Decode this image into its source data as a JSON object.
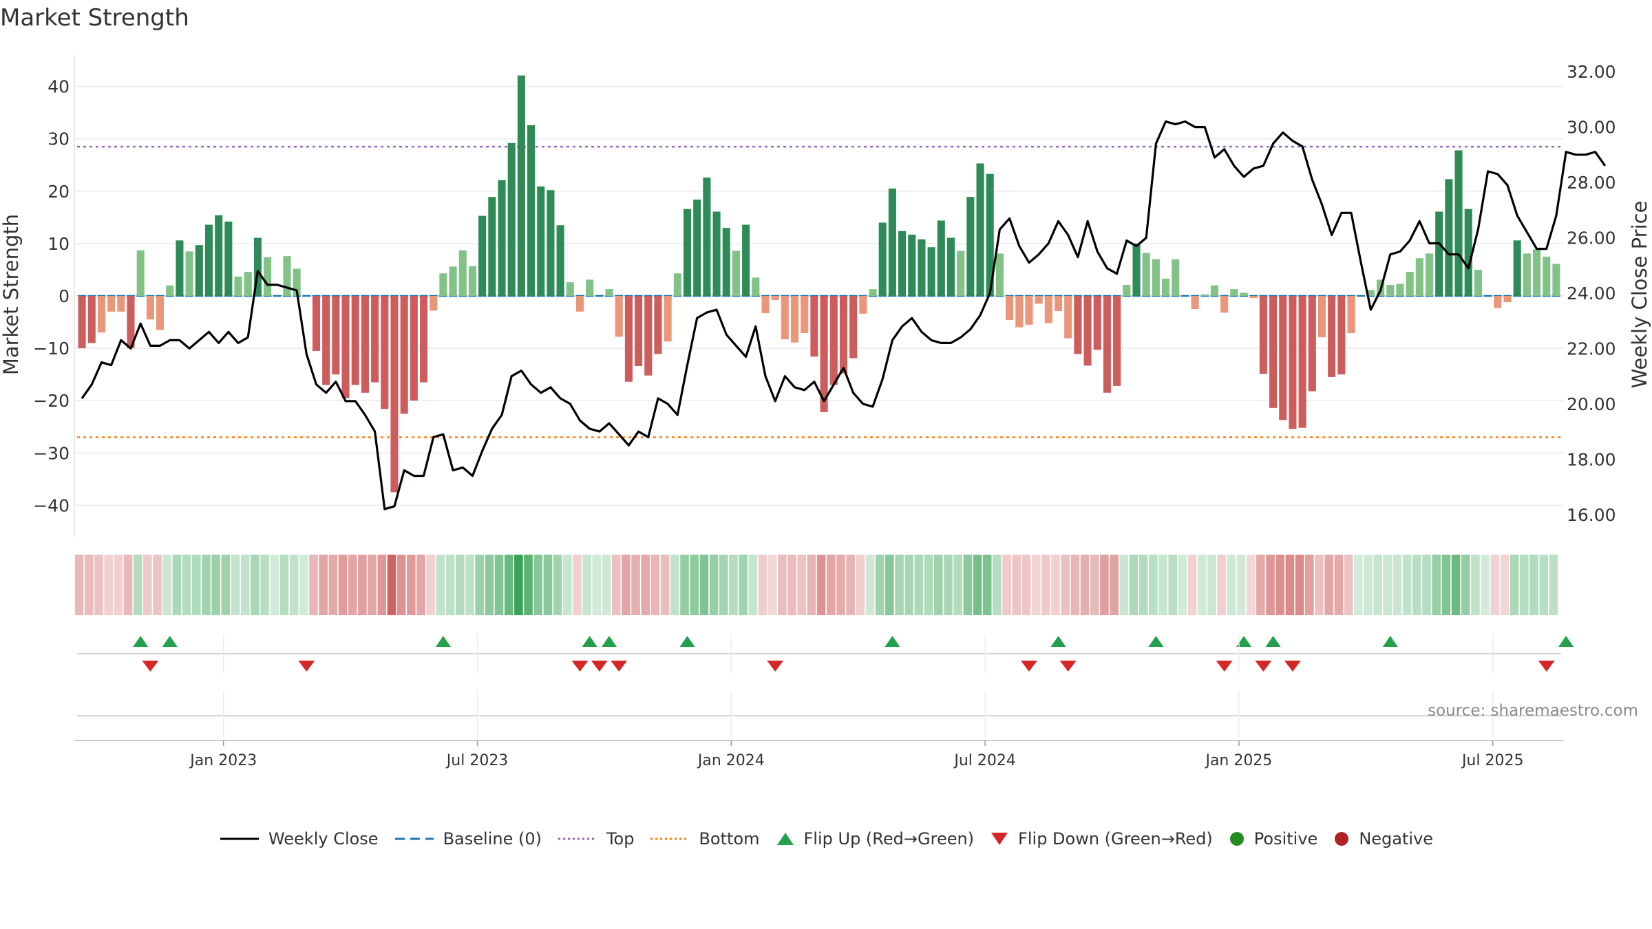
{
  "chart_data": {
    "type": "bar",
    "title": "Market Strength",
    "source": "source: sharemaestro.com",
    "ylabel_left": "Market Strength",
    "ylabel_right": "Weekly Close Price",
    "ylim_left": [
      -46,
      46
    ],
    "ylim_right": [
      15.2,
      32.6
    ],
    "left_ticks": [
      40,
      30,
      20,
      10,
      0,
      -10,
      -20,
      -30,
      -40
    ],
    "left_tick_labels": [
      "40",
      "30",
      "20",
      "10",
      "0",
      "−10",
      "−20",
      "−30",
      "−40"
    ],
    "right_ticks": [
      "32.00",
      "30.00",
      "28.00",
      "26.00",
      "24.00",
      "22.00",
      "20.00",
      "18.00",
      "16.00"
    ],
    "x_ticks": [
      "Jan 2023",
      "Jul 2023",
      "Jan 2024",
      "Jul 2024",
      "Jan 2025",
      "Jul 2025"
    ],
    "x_tick_weeks": [
      14.5,
      40.5,
      66.5,
      92.5,
      118.5,
      144.5
    ],
    "top_level": 28.5,
    "bottom_level": -27,
    "baseline": 0,
    "strength": [
      -10,
      -9,
      -7,
      -3,
      -3,
      -10,
      8.7,
      -4.5,
      -6.5,
      2,
      10.6,
      8.5,
      9.7,
      13.6,
      15.4,
      14.2,
      3.7,
      4.6,
      11.1,
      7.4,
      0,
      7.6,
      5.2,
      0,
      -10.5,
      -17,
      -15,
      -19.5,
      -17,
      -18.5,
      -16.5,
      -21.6,
      -37.5,
      -22.5,
      -20,
      -16.5,
      -2.8,
      4.3,
      5.6,
      8.7,
      5.7,
      15.3,
      18.9,
      22.1,
      29.2,
      42.1,
      32.6,
      20.9,
      20.2,
      13.5,
      2.6,
      -3,
      3.1,
      0,
      1.3,
      -7.8,
      -16.4,
      -13.4,
      -15.2,
      -11.1,
      -8.7,
      4.3,
      16.6,
      18.4,
      22.6,
      16.1,
      13,
      8.6,
      13.6,
      3.5,
      -3.3,
      -0.8,
      -8.3,
      -8.9,
      -7.1,
      -11.6,
      -22.2,
      -17,
      -14.8,
      -11.9,
      -3.4,
      1.3,
      14,
      20.5,
      12.4,
      11.7,
      10.8,
      9.3,
      14.4,
      11.1,
      8.6,
      18.9,
      25.3,
      23.3,
      8.1,
      -4.6,
      -6,
      -5.5,
      -1.5,
      -5.2,
      -2.9,
      -8.1,
      -11.1,
      -13.3,
      -10.3,
      -18.5,
      -17.2,
      2.1,
      10,
      8.2,
      7,
      3.3,
      7,
      0,
      -2.5,
      0.3,
      2,
      -3.2,
      1.3,
      0.6,
      -0.4,
      -14.9,
      -21.4,
      -23.7,
      -25.4,
      -25.2,
      -18.2,
      -7.9,
      -15.5,
      -15,
      -7.1,
      0,
      1.1,
      3.1,
      2.1,
      2.3,
      4.6,
      7.2,
      8.1,
      16.1,
      22.3,
      27.8,
      16.6,
      5,
      0,
      -2.3,
      -1.2,
      10.6,
      8.1,
      8.9,
      7.5,
      6.1
    ],
    "close": [
      20.2,
      20.7,
      21.5,
      21.4,
      22.3,
      22.0,
      22.9,
      22.1,
      22.1,
      22.3,
      22.3,
      22.0,
      22.3,
      22.6,
      22.2,
      22.6,
      22.2,
      22.4,
      24.8,
      24.3,
      24.3,
      24.2,
      24.1,
      21.8,
      20.7,
      20.4,
      20.8,
      20.1,
      20.1,
      19.6,
      19.0,
      16.2,
      16.3,
      17.6,
      17.4,
      17.4,
      18.8,
      18.9,
      17.6,
      17.7,
      17.4,
      18.3,
      19.1,
      19.6,
      21.0,
      21.2,
      20.7,
      20.4,
      20.6,
      20.2,
      20.0,
      19.4,
      19.1,
      19.0,
      19.3,
      18.9,
      18.5,
      19.0,
      18.8,
      20.2,
      20.0,
      19.6,
      21.4,
      23.1,
      23.3,
      23.4,
      22.5,
      22.1,
      21.7,
      22.8,
      21.0,
      20.1,
      21.0,
      20.6,
      20.5,
      20.8,
      20.1,
      20.7,
      21.3,
      20.4,
      20.0,
      19.9,
      20.9,
      22.3,
      22.8,
      23.1,
      22.6,
      22.3,
      22.2,
      22.2,
      22.4,
      22.7,
      23.2,
      24.0,
      26.3,
      26.7,
      25.7,
      25.1,
      25.4,
      25.8,
      26.6,
      26.1,
      25.3,
      26.6,
      25.5,
      24.9,
      24.7,
      25.9,
      25.7,
      26.0,
      29.4,
      30.2,
      30.1,
      30.2,
      30.0,
      30.0,
      28.9,
      29.2,
      28.6,
      28.2,
      28.5,
      28.6,
      29.4,
      29.8,
      29.5,
      29.3,
      28.1,
      27.2,
      26.1,
      26.9,
      26.9,
      25.1,
      23.4,
      24.1,
      25.4,
      25.5,
      25.9,
      26.6,
      25.8,
      25.8,
      25.4,
      25.4,
      24.9,
      26.3,
      28.4,
      28.3,
      27.9,
      26.8,
      26.2,
      25.6,
      25.6,
      26.8,
      29.1,
      29.0,
      29.0,
      29.1,
      28.6
    ],
    "flips_up": [
      6,
      9,
      37,
      52,
      54,
      62,
      83,
      100,
      110,
      119,
      122,
      134,
      152
    ],
    "flips_down": [
      7,
      23,
      51,
      53,
      55,
      71,
      97,
      101,
      117,
      121,
      124,
      150
    ],
    "legend": [
      "Weekly Close",
      "Baseline (0)",
      "Top",
      "Bottom",
      "Flip Up (Red→Green)",
      "Flip Down (Green→Red)",
      "Positive",
      "Negative"
    ],
    "colors": {
      "green_strong": "#2e8b57",
      "green_weak": "#82c287",
      "red_strong": "#cd5c5c",
      "red_weak": "#e9967a",
      "line": "#000000",
      "baseline": "#1f77b4",
      "top": "#9467bd",
      "bottom": "#ff7f0e",
      "flip_up": "#22a04b",
      "flip_down": "#d62728",
      "positive": "#228b22",
      "negative": "#b22222"
    }
  }
}
